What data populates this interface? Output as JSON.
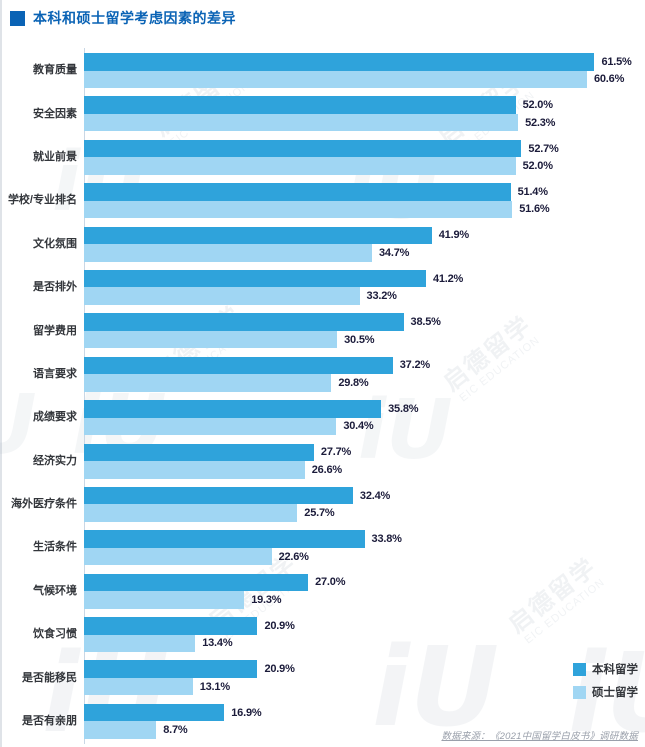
{
  "title": "本科和硕士留学考虑因素的差异",
  "colors": {
    "undergrad": "#2fa3db",
    "master": "#a0d6f3",
    "title": "#0a63b5",
    "axis": "#c9d7e5"
  },
  "legend": [
    {
      "label": "本科留学",
      "color": "#2fa3db"
    },
    {
      "label": "硕士留学",
      "color": "#a0d6f3"
    }
  ],
  "footer": "数据来源：《2021中国留学白皮书》调研数据",
  "watermark": {
    "brand": "启德留学",
    "brand_en": "EIC EDUCATION",
    "logo_glyph": "iU"
  },
  "chart_data": {
    "type": "bar",
    "orientation": "horizontal",
    "title": "本科和硕士留学考虑因素的差异",
    "value_suffix": "%",
    "xlim": [
      0,
      65
    ],
    "grid": false,
    "legend_position": "right-bottom",
    "value_labels": true,
    "categories": [
      "教育质量",
      "安全因素",
      "就业前景",
      "学校/专业排名",
      "文化氛围",
      "是否排外",
      "留学费用",
      "语言要求",
      "成绩要求",
      "经济实力",
      "海外医疗条件",
      "生活条件",
      "气候环境",
      "饮食习惯",
      "是否能移民",
      "是否有亲朋"
    ],
    "series": [
      {
        "name": "本科留学",
        "values": [
          61.5,
          52.0,
          52.7,
          51.4,
          41.9,
          41.2,
          38.5,
          37.2,
          35.8,
          27.7,
          32.4,
          33.8,
          27.0,
          20.9,
          20.9,
          16.9
        ]
      },
      {
        "name": "硕士留学",
        "values": [
          60.6,
          52.3,
          52.0,
          51.6,
          34.7,
          33.2,
          30.5,
          29.8,
          30.4,
          26.6,
          25.7,
          22.6,
          19.3,
          13.4,
          13.1,
          8.7
        ]
      }
    ]
  }
}
